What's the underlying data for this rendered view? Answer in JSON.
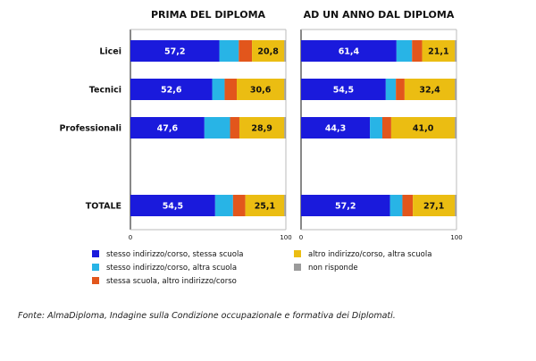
{
  "chart_data": {
    "type": "bar",
    "stacked": true,
    "orientation": "horizontal",
    "categories": [
      "Licei",
      "Tecnici",
      "Professionali",
      "TOTALE"
    ],
    "axis": {
      "min": 0,
      "max": 100,
      "tick_labels": [
        "0",
        "100"
      ]
    },
    "colors": {
      "s1": "#1a1adc",
      "s2": "#28b4e6",
      "s3": "#e2561c",
      "s4": "#ebbd12",
      "s5": "#9b9b9b",
      "grid": "#bbbbbb",
      "frame": "#111111",
      "text": "#111111"
    },
    "series_legend": [
      {
        "key": "s1",
        "name": "stesso indirizzo/corso, stessa scuola"
      },
      {
        "key": "s2",
        "name": "stesso indirizzo/corso, altra scuola"
      },
      {
        "key": "s3",
        "name": "stessa scuola, altro indirizzo/corso"
      },
      {
        "key": "s4",
        "name": "altro indirizzo/corso, altra scuola"
      },
      {
        "key": "s5",
        "name": "non risponde"
      }
    ],
    "panels": [
      {
        "id": "prima",
        "title": "PRIMA DEL DIPLOMA",
        "rows": [
          {
            "category": "Licei",
            "values": [
              57.2,
              12.5,
              8.5,
              20.8,
              1.0
            ],
            "labels": [
              "57,2",
              "",
              "",
              "20,8",
              ""
            ]
          },
          {
            "category": "Tecnici",
            "values": [
              52.6,
              8.0,
              7.8,
              30.6,
              1.0
            ],
            "labels": [
              "52,6",
              "",
              "",
              "30,6",
              ""
            ]
          },
          {
            "category": "Professionali",
            "values": [
              47.6,
              16.5,
              6.0,
              28.9,
              1.0
            ],
            "labels": [
              "47,6",
              "",
              "",
              "28,9",
              ""
            ]
          },
          {
            "category": "TOTALE",
            "values": [
              54.5,
              11.5,
              7.9,
              25.1,
              1.0
            ],
            "labels": [
              "54,5",
              "",
              "",
              "25,1",
              ""
            ]
          }
        ]
      },
      {
        "id": "anno",
        "title": "AD UN ANNO DAL DIPLOMA",
        "rows": [
          {
            "category": "Licei",
            "values": [
              61.4,
              10.0,
              6.5,
              21.1,
              1.0
            ],
            "labels": [
              "61,4",
              "",
              "",
              "21,1",
              ""
            ]
          },
          {
            "category": "Tecnici",
            "values": [
              54.5,
              6.5,
              5.6,
              32.4,
              1.0
            ],
            "labels": [
              "54,5",
              "",
              "",
              "32,4",
              ""
            ]
          },
          {
            "category": "Professionali",
            "values": [
              44.3,
              8.0,
              5.7,
              41.0,
              1.0
            ],
            "labels": [
              "44,3",
              "",
              "",
              "41,0",
              ""
            ]
          },
          {
            "category": "TOTALE",
            "values": [
              57.2,
              8.0,
              6.7,
              27.1,
              1.0
            ],
            "labels": [
              "57,2",
              "",
              "",
              "27,1",
              ""
            ]
          }
        ]
      }
    ]
  },
  "source_note": "Fonte: AlmaDiploma, Indagine sulla Condizione occupazionale e formativa dei Diplomati."
}
